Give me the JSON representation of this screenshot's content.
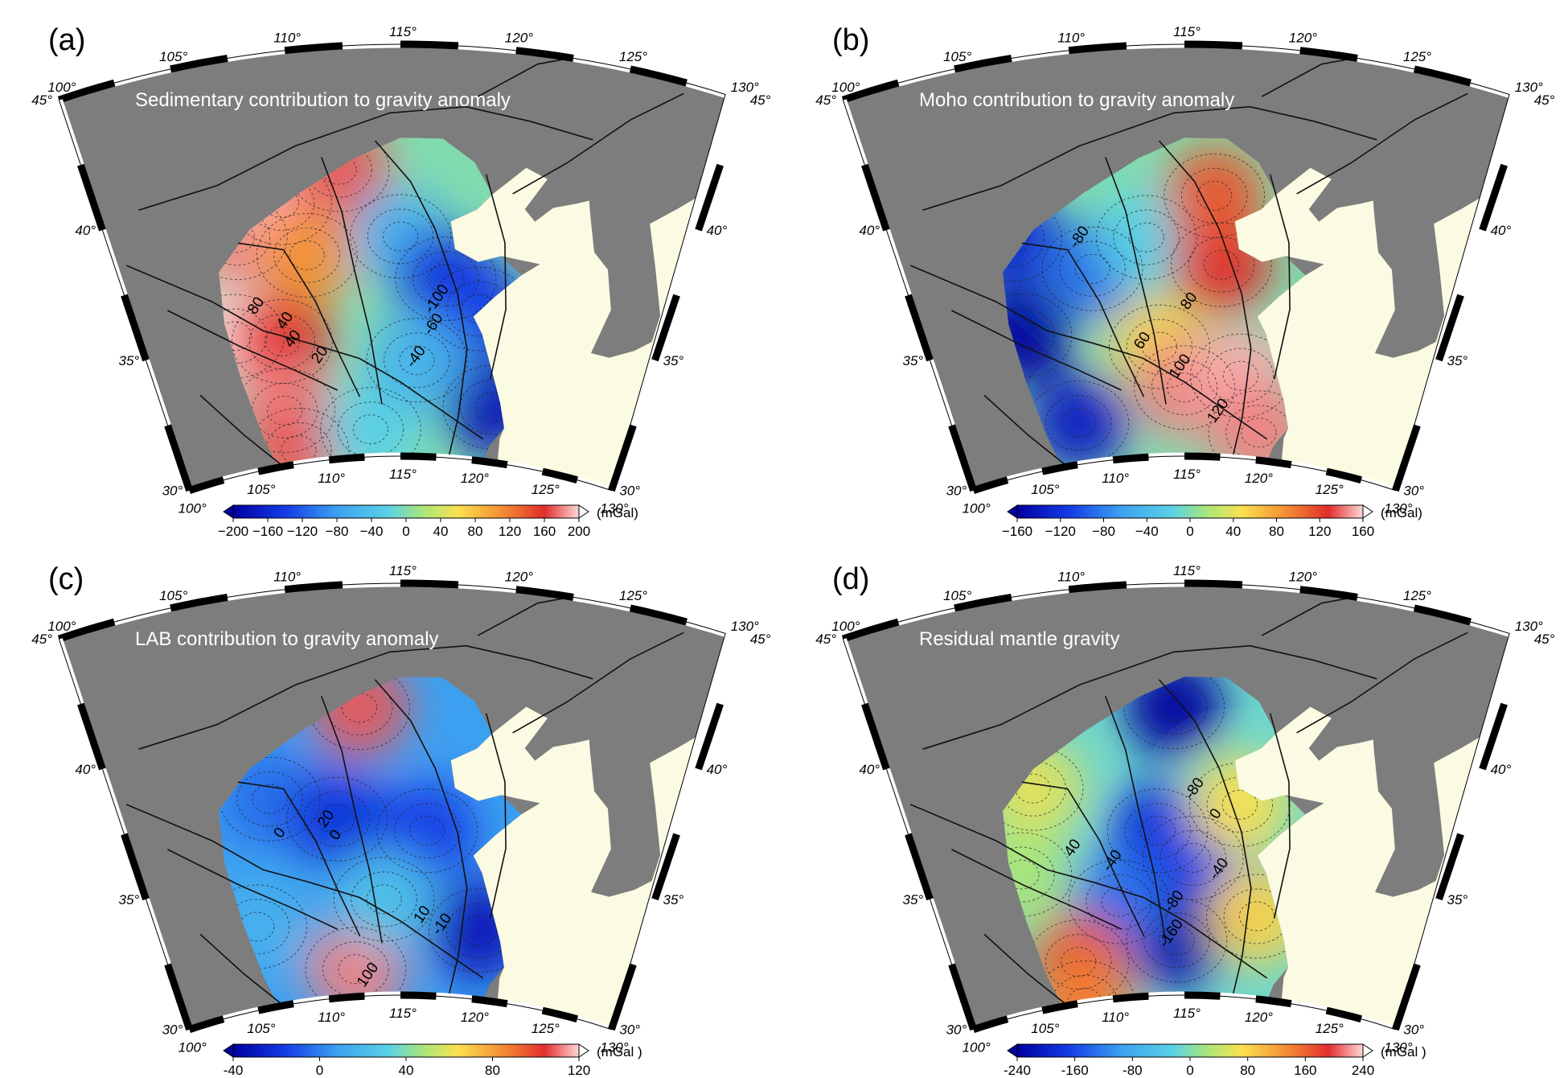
{
  "panels": [
    {
      "label": "(a)",
      "title": "Sedimentary contribution to gravity anomaly",
      "lon_top": [
        "100°",
        "105°",
        "110°",
        "115°",
        "120°",
        "125°",
        "130°"
      ],
      "lon_bottom": [
        "100°",
        "105°",
        "110°",
        "115°",
        "120°",
        "125°",
        "130°"
      ],
      "lat_left": [
        "45°",
        "40°",
        "35°",
        "30°"
      ],
      "lat_right": [
        "45°",
        "40°",
        "35°",
        "30°"
      ],
      "contour_labels": [
        "80",
        "40",
        "40",
        "20",
        "-100",
        "-60",
        "-40"
      ],
      "colorbar": {
        "ticks": [
          "−200",
          "−160",
          "−120",
          "−80",
          "−40",
          "0",
          "40",
          "80",
          "120",
          "160",
          "200"
        ],
        "unit": "(mGal)",
        "range": [
          -200,
          200
        ]
      },
      "anomalies": [
        {
          "lon": 106.5,
          "lat": 38.5,
          "v": 0.9
        },
        {
          "lon": 109,
          "lat": 39.5,
          "v": 0.95
        },
        {
          "lon": 112,
          "lat": 40.5,
          "v": 0.85
        },
        {
          "lon": 105.3,
          "lat": 35,
          "v": 1.0
        },
        {
          "lon": 108,
          "lat": 34.5,
          "v": 0.8
        },
        {
          "lon": 107.5,
          "lat": 32,
          "v": 0.9
        },
        {
          "lon": 108,
          "lat": 30.5,
          "v": 0.85
        },
        {
          "lon": 110,
          "lat": 37.5,
          "v": 0.55
        },
        {
          "lon": 115,
          "lat": 38,
          "v": -0.3
        },
        {
          "lon": 117.5,
          "lat": 36.5,
          "v": -0.75
        },
        {
          "lon": 119.5,
          "lat": 35.5,
          "v": -0.7
        },
        {
          "lon": 121,
          "lat": 32,
          "v": -0.9
        },
        {
          "lon": 113,
          "lat": 31,
          "v": -0.1
        },
        {
          "lon": 116,
          "lat": 33.5,
          "v": -0.3
        }
      ]
    },
    {
      "label": "(b)",
      "title": "Moho contribution to gravity anomaly",
      "lon_top": [
        "100°",
        "105°",
        "110°",
        "115°",
        "120°",
        "125°",
        "130°"
      ],
      "lon_bottom": [
        "100°",
        "105°",
        "110°",
        "115°",
        "120°",
        "125°",
        "130°"
      ],
      "lat_left": [
        "45°",
        "40°",
        "35°",
        "30°"
      ],
      "lat_right": [
        "45°",
        "40°",
        "35°",
        "30°"
      ],
      "contour_labels": [
        "-80",
        "60",
        "80",
        "100",
        "120"
      ],
      "colorbar": {
        "ticks": [
          "−160",
          "−120",
          "−80",
          "−40",
          "0",
          "40",
          "80",
          "120",
          "160"
        ],
        "unit": "(mGal)",
        "range": [
          -160,
          160
        ]
      },
      "anomalies": [
        {
          "lon": 105.5,
          "lat": 35,
          "v": -1.0
        },
        {
          "lon": 106,
          "lat": 38.5,
          "v": -0.8
        },
        {
          "lon": 108,
          "lat": 31.5,
          "v": -0.85
        },
        {
          "lon": 110,
          "lat": 37,
          "v": -0.55
        },
        {
          "lon": 113,
          "lat": 38,
          "v": -0.1
        },
        {
          "lon": 113.5,
          "lat": 34,
          "v": 0.35
        },
        {
          "lon": 117,
          "lat": 37,
          "v": 0.8
        },
        {
          "lon": 115,
          "lat": 32.5,
          "v": 0.9
        },
        {
          "lon": 118.5,
          "lat": 33,
          "v": 0.95
        },
        {
          "lon": 120,
          "lat": 31,
          "v": 0.9
        },
        {
          "lon": 116.5,
          "lat": 39.5,
          "v": 0.7
        }
      ]
    },
    {
      "label": "(c)",
      "title": "LAB contribution to gravity anomaly",
      "lon_top": [
        "100°",
        "105°",
        "110°",
        "115°",
        "120°",
        "125°",
        "130°"
      ],
      "lon_bottom": [
        "100°",
        "105°",
        "110°",
        "115°",
        "120°",
        "125°",
        "130°"
      ],
      "lat_left": [
        "45°",
        "40°",
        "35°",
        "30°"
      ],
      "lat_right": [
        "45°",
        "40°",
        "35°",
        "30°"
      ],
      "contour_labels": [
        "0",
        "20",
        "0",
        "10",
        "-10",
        "100"
      ],
      "colorbar": {
        "ticks": [
          "-40",
          "0",
          "40",
          "80",
          "120"
        ],
        "unit": "(mGal )",
        "range": [
          -40,
          120
        ]
      },
      "anomalies": [
        {
          "lon": 113,
          "lat": 40.5,
          "v": 0.85
        },
        {
          "lon": 112,
          "lat": 31,
          "v": 0.9
        },
        {
          "lon": 108,
          "lat": 37.5,
          "v": -0.55
        },
        {
          "lon": 111.5,
          "lat": 36.5,
          "v": -0.75
        },
        {
          "lon": 116.5,
          "lat": 36,
          "v": -0.7
        },
        {
          "lon": 120,
          "lat": 32.5,
          "v": -0.9
        },
        {
          "lon": 106,
          "lat": 33,
          "v": -0.3
        },
        {
          "lon": 114,
          "lat": 33.5,
          "v": -0.2
        }
      ]
    },
    {
      "label": "(d)",
      "title": "Residual mantle gravity",
      "lon_top": [
        "100°",
        "105°",
        "110°",
        "115°",
        "120°",
        "125°",
        "130°"
      ],
      "lon_bottom": [
        "100°",
        "105°",
        "110°",
        "115°",
        "120°",
        "125°",
        "130°"
      ],
      "lat_left": [
        "45°",
        "40°",
        "35°",
        "30°"
      ],
      "lat_right": [
        "45°",
        "40°",
        "35°",
        "30°"
      ],
      "contour_labels": [
        "40",
        "-40",
        "-80",
        "0",
        "-40",
        "-80",
        "-160"
      ],
      "colorbar": {
        "ticks": [
          "-240",
          "-160",
          "-80",
          "0",
          "80",
          "160",
          "240"
        ],
        "unit": "(mGal )",
        "range": [
          -240,
          240
        ]
      },
      "anomalies": [
        {
          "lon": 114.5,
          "lat": 40.5,
          "v": -1.0
        },
        {
          "lon": 113.5,
          "lat": 36,
          "v": -0.75
        },
        {
          "lon": 115.5,
          "lat": 35,
          "v": -0.7
        },
        {
          "lon": 114.5,
          "lat": 32,
          "v": -0.95
        },
        {
          "lon": 111,
          "lat": 33.5,
          "v": -0.55
        },
        {
          "lon": 108,
          "lat": 31.5,
          "v": 0.7
        },
        {
          "lon": 107,
          "lat": 38,
          "v": 0.25
        },
        {
          "lon": 118,
          "lat": 37,
          "v": 0.3
        },
        {
          "lon": 119.5,
          "lat": 33,
          "v": 0.35
        },
        {
          "lon": 105.5,
          "lat": 35,
          "v": 0.1
        },
        {
          "lon": 108,
          "lat": 30,
          "v": 0.6
        }
      ]
    }
  ],
  "colors": {
    "ocean": "#fbfbe3",
    "land": "#7d7d7d",
    "line": "#111111",
    "frame_dark": "#000000",
    "frame_light": "#ffffff"
  }
}
